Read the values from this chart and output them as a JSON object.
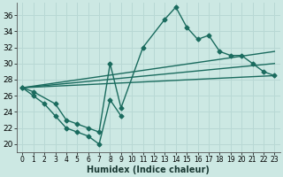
{
  "xlabel": "Humidex (Indice chaleur)",
  "bg_color": "#cce8e3",
  "grid_color": "#b8d8d4",
  "line_color": "#1a6b5e",
  "line_width": 1.0,
  "marker": "D",
  "marker_size": 2.5,
  "font_size": 6,
  "ylim": [
    19.0,
    37.5
  ],
  "xlim": [
    -0.5,
    23.5
  ],
  "yticks": [
    20,
    22,
    24,
    26,
    28,
    30,
    32,
    34,
    36
  ],
  "xticks": [
    0,
    1,
    2,
    3,
    4,
    5,
    6,
    7,
    8,
    9,
    10,
    11,
    12,
    13,
    14,
    15,
    16,
    17,
    18,
    19,
    20,
    21,
    22,
    23
  ],
  "curve_upper_x": [
    0,
    1,
    3,
    4,
    5,
    6,
    7,
    8,
    9,
    11,
    13,
    14,
    15,
    16,
    17,
    18,
    19,
    20,
    21,
    22,
    23
  ],
  "curve_upper_y": [
    27,
    26.5,
    25,
    23,
    22.5,
    22,
    21.5,
    30,
    24.5,
    32,
    35.5,
    37,
    34.5,
    33,
    33.5,
    31.5,
    31,
    31,
    30,
    29,
    28.5
  ],
  "curve_lower_x": [
    0,
    1,
    2,
    3,
    4,
    5,
    6,
    7,
    8,
    9
  ],
  "curve_lower_y": [
    27,
    26,
    25,
    23.5,
    22,
    21.5,
    21,
    20,
    25.5,
    23.5
  ],
  "trend1_x": [
    0,
    23
  ],
  "trend1_y": [
    27.0,
    31.5
  ],
  "trend2_x": [
    0,
    23
  ],
  "trend2_y": [
    27.0,
    30.0
  ],
  "trend3_x": [
    0,
    23
  ],
  "trend3_y": [
    27.0,
    28.5
  ]
}
